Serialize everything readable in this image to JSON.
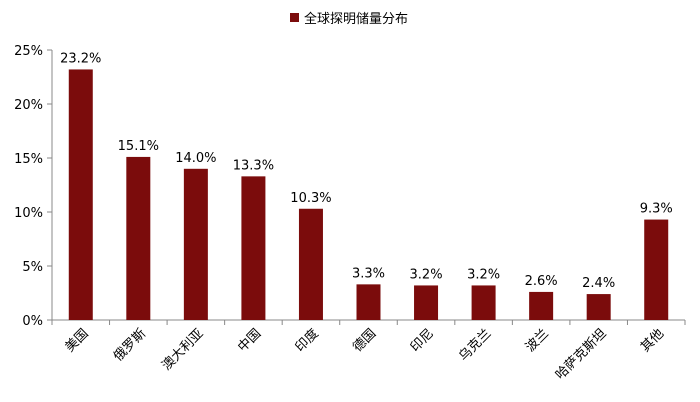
{
  "chart_data": {
    "type": "bar",
    "title": "",
    "legend": {
      "entries": [
        "全球探明储量分布"
      ],
      "position": "top"
    },
    "categories": [
      "美国",
      "俄罗斯",
      "澳大利亚",
      "中国",
      "印度",
      "德国",
      "印尼",
      "乌克兰",
      "波兰",
      "哈萨克斯坦",
      "其他"
    ],
    "series": [
      {
        "name": "全球探明储量分布",
        "values": [
          23.2,
          15.1,
          14.0,
          13.3,
          10.3,
          3.3,
          3.2,
          3.2,
          2.6,
          2.4,
          9.3
        ],
        "value_labels": [
          "23.2%",
          "15.1%",
          "14.0%",
          "13.3%",
          "10.3%",
          "3.3%",
          "3.2%",
          "3.2%",
          "2.6%",
          "2.4%",
          "9.3%"
        ],
        "color": "#7b0c0c"
      }
    ],
    "y_ticks": [
      0,
      5,
      10,
      15,
      20,
      25
    ],
    "y_tick_labels": [
      "0%",
      "5%",
      "10%",
      "15%",
      "20%",
      "25%"
    ],
    "ylim": [
      0,
      25
    ],
    "xlabel": "",
    "ylabel": "",
    "grid": false
  }
}
